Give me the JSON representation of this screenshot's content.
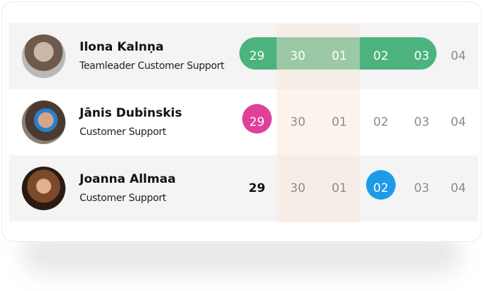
{
  "rows": [
    {
      "name": "Ilona Kalnņa",
      "role": "Teamleader Customer Support",
      "dates": [
        "29",
        "30",
        "01",
        "02",
        "03",
        "04"
      ]
    },
    {
      "name": "Jānis Dubinskis",
      "role": "Customer Support",
      "dates": [
        "29",
        "30",
        "01",
        "02",
        "03",
        "04"
      ]
    },
    {
      "name": "Joanna Allmaa",
      "role": "Customer Support",
      "dates": [
        "29",
        "30",
        "01",
        "02",
        "03",
        "04"
      ]
    }
  ]
}
